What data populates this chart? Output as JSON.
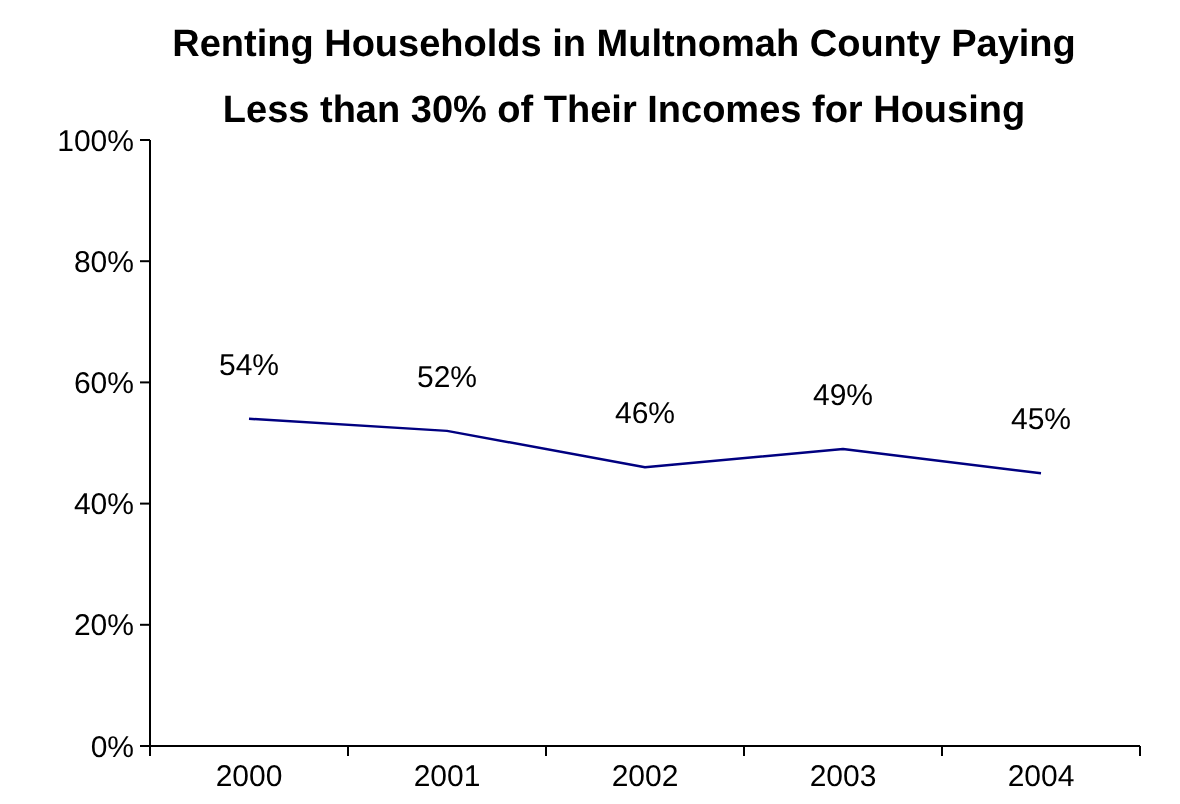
{
  "chart_data": {
    "type": "line",
    "title": "Renting Households in Multnomah County Paying Less than 30% of Their Incomes for Housing",
    "categories": [
      "2000",
      "2001",
      "2002",
      "2003",
      "2004"
    ],
    "series": [
      {
        "color": "#000080",
        "values": [
          54,
          52,
          46,
          49,
          45
        ],
        "value_labels": [
          "54%",
          "52%",
          "46%",
          "49%",
          "45%"
        ]
      }
    ],
    "ylim": [
      0,
      100
    ],
    "yticks": [
      {
        "value": 0,
        "label": "0%"
      },
      {
        "value": 20,
        "label": "20%"
      },
      {
        "value": 40,
        "label": "40%"
      },
      {
        "value": 60,
        "label": "60%"
      },
      {
        "value": 80,
        "label": "80%"
      },
      {
        "value": 100,
        "label": "100%"
      }
    ],
    "marker": "none",
    "line_style": "solid"
  }
}
